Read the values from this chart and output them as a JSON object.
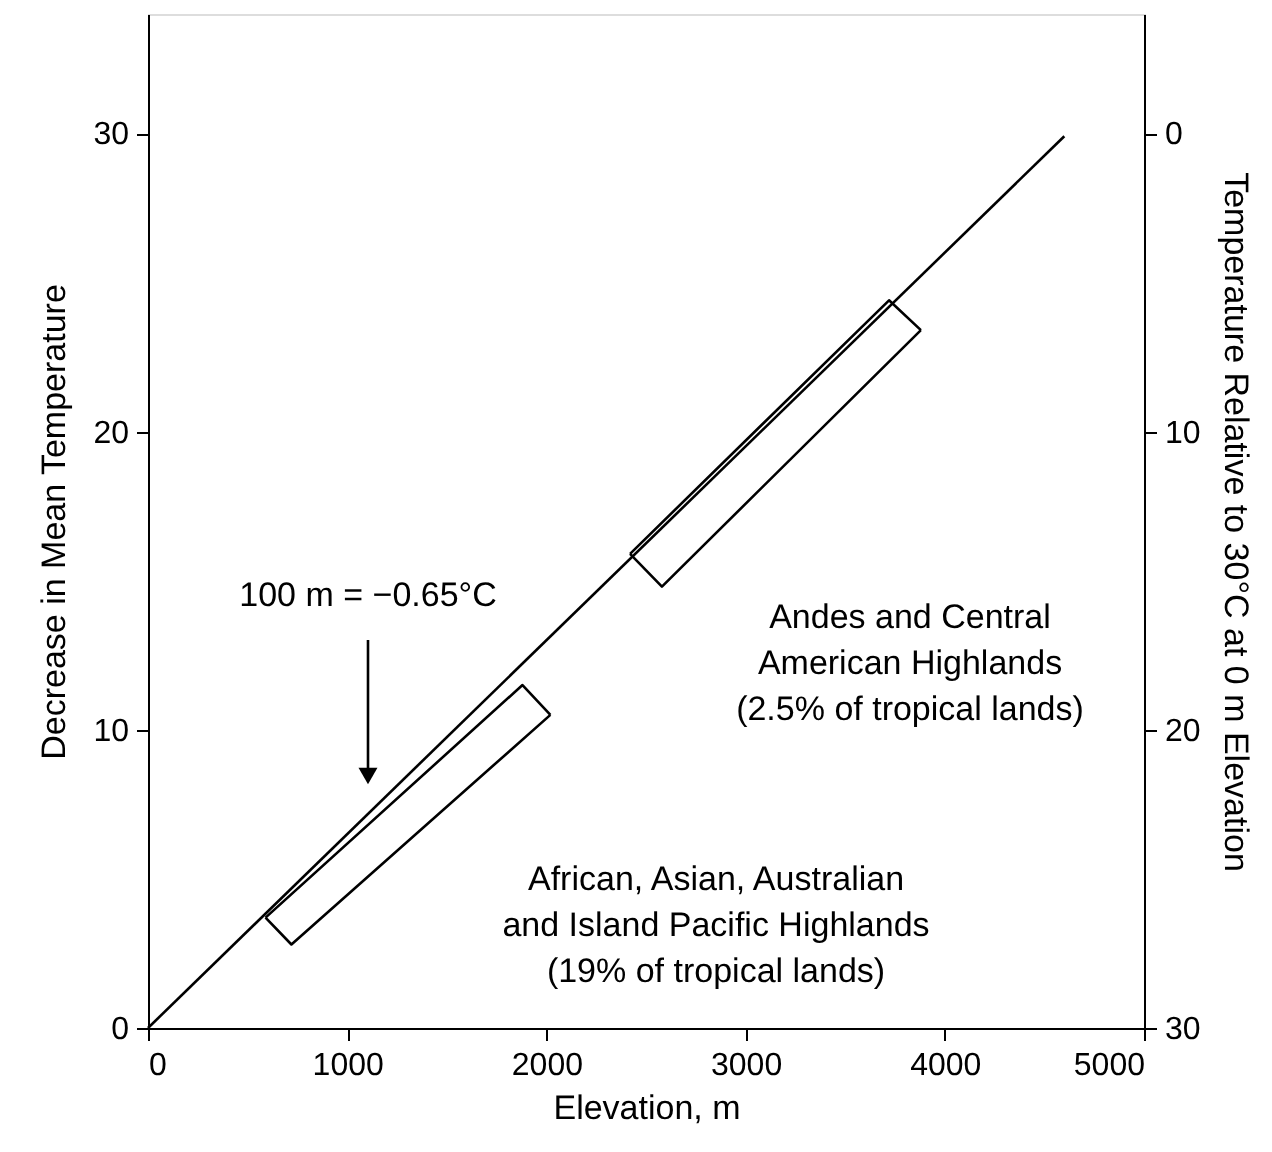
{
  "chart_data": {
    "type": "line",
    "xlabel": "Elevation, m",
    "ylabel": "Decrease in Mean Temperature",
    "y2label": "Temperature Relative to 30°C at 0 m Elevation",
    "xlim": [
      0,
      5000
    ],
    "xticks": [
      0,
      1000,
      2000,
      3000,
      4000,
      5000
    ],
    "ylim": [
      0,
      34
    ],
    "yticks": [
      0,
      10,
      20,
      30
    ],
    "y2lim": [
      30,
      -4
    ],
    "y2ticks": [
      0,
      10,
      20,
      30
    ],
    "grid": false,
    "marker": "none",
    "line_style": "solid",
    "series": [
      {
        "color": "#000000",
        "x": [
          0,
          4600
        ],
        "values": [
          0,
          29.9
        ]
      },
      {
        "color": "#000000",
        "x": [
          590,
          1880,
          2020
        ],
        "values": [
          3.7,
          11.5,
          10.5
        ]
      },
      {
        "color": "#000000",
        "x": [
          590,
          720,
          2020
        ],
        "values": [
          3.7,
          2.8,
          10.5
        ]
      },
      {
        "color": "#000000",
        "x": [
          2420,
          3720,
          3880
        ],
        "values": [
          15.9,
          24.4,
          23.4
        ]
      },
      {
        "color": "#000000",
        "x": [
          2420,
          2580,
          3880
        ],
        "values": [
          15.9,
          14.8,
          23.4
        ]
      }
    ],
    "annotations": [
      "100 m = −0.65°C",
      "Andes and Central\nAmerican Highlands\n(2.5% of tropical lands)",
      "African, Asian, Australian\nand Island Pacific Highlands\n(19% of tropical lands)"
    ]
  }
}
